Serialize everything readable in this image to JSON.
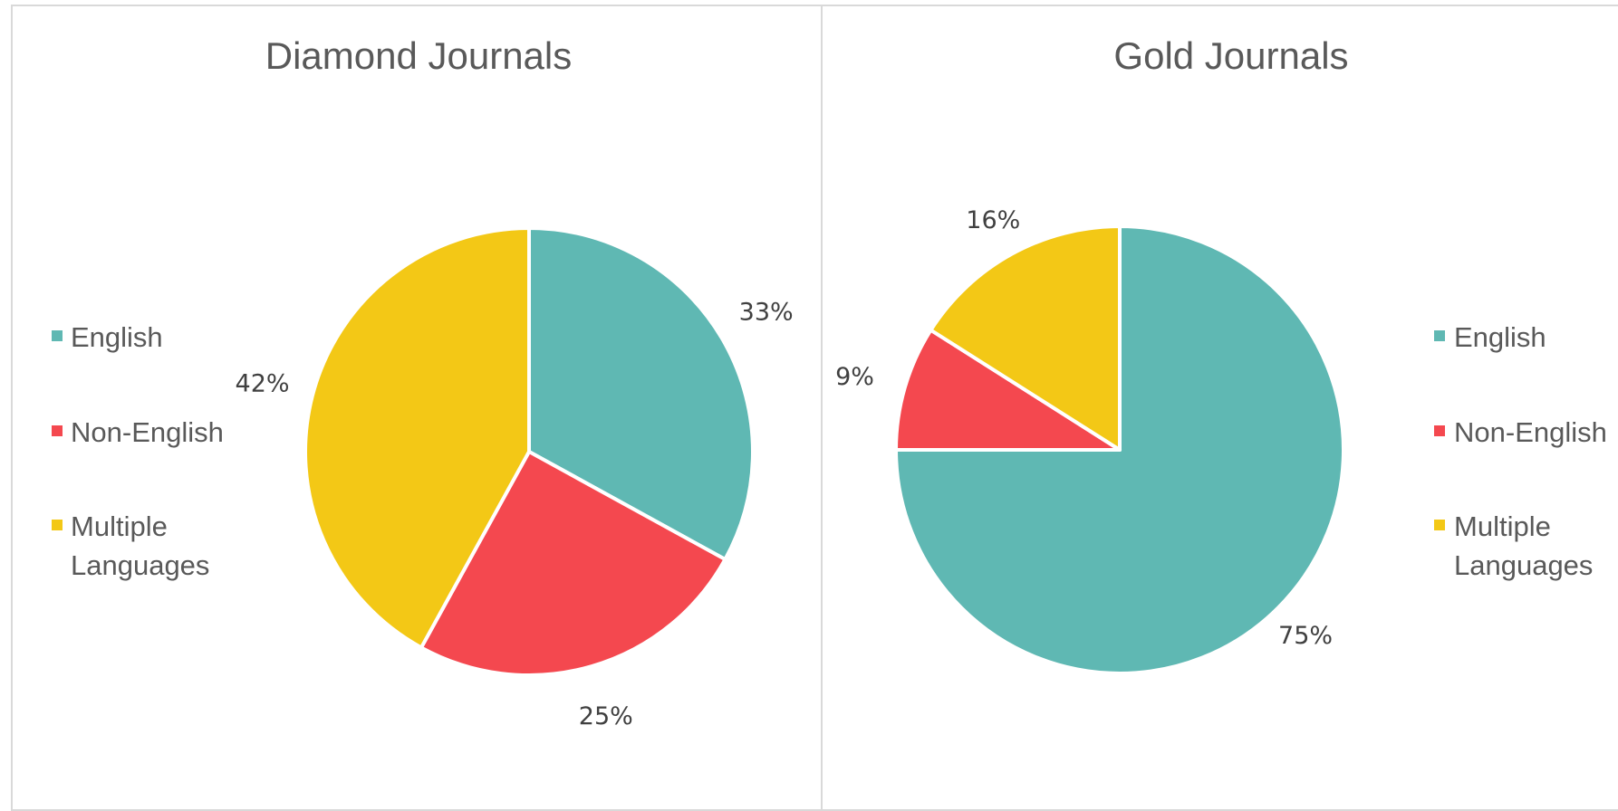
{
  "chart_data": [
    {
      "type": "pie",
      "title": "Diamond Journals",
      "categories": [
        "English",
        "Non-English",
        "Multiple Languages"
      ],
      "values": [
        33,
        25,
        42
      ],
      "labels": [
        "33%",
        "25%",
        "42%"
      ],
      "colors": [
        "#5fb8b3",
        "#f4484f",
        "#f3c816"
      ],
      "legend_position": "left",
      "legend": [
        {
          "line1": "English",
          "line2": ""
        },
        {
          "line1": "Non-English",
          "line2": ""
        },
        {
          "line1": "Multiple",
          "line2": "Languages"
        }
      ]
    },
    {
      "type": "pie",
      "title": "Gold Journals",
      "categories": [
        "English",
        "Non-English",
        "Multiple Languages"
      ],
      "values": [
        75,
        9,
        16
      ],
      "labels": [
        "75%",
        "9%",
        "16%"
      ],
      "colors": [
        "#5fb8b3",
        "#f4484f",
        "#f3c816"
      ],
      "legend_position": "right",
      "legend": [
        {
          "line1": "English",
          "line2": ""
        },
        {
          "line1": "Non-English",
          "line2": ""
        },
        {
          "line1": "Multiple",
          "line2": "Languages"
        }
      ]
    }
  ]
}
